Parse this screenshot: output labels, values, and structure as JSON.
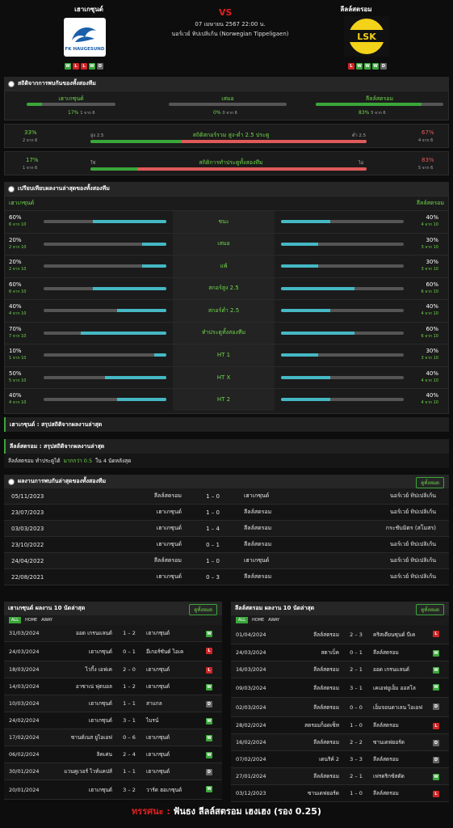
{
  "header": {
    "home": "เฮาเกซุนด์",
    "away": "ลีลล์สตรอม",
    "vs": "VS",
    "date": "07 เมษายน 2567 22:00 น.",
    "league": "นอร์เวย์ ทิปเปลิเก้น (Norwegian Tippeligaen)",
    "home_logo_text": "FK HAUGESUND",
    "away_logo_text": "LSK",
    "home_form": [
      "W",
      "L",
      "L",
      "W",
      "D"
    ],
    "away_form": [
      "L",
      "W",
      "W",
      "W",
      "D"
    ]
  },
  "h2h_stats": {
    "title": "สถิติจากการพบกันของทั้งสองทีม",
    "home_label": "เฮาเกซุนด์",
    "draw_label": "เสมอ",
    "away_label": "ลีลล์สตรอม",
    "home_pct": "17%",
    "home_of": "1 จาก 6",
    "draw_pct": "0%",
    "draw_of": "0 จาก 6",
    "away_pct": "83%",
    "away_of": "5 จาก 6",
    "ou_left_pct": "33%",
    "ou_left_of": "2 จาก 6",
    "ou_over": "สูง 2.5",
    "ou_title": "สถิติสกอร์รวม สูง-ต่ำ 2.5 ประตู",
    "ou_under": "ต่ำ 2.5",
    "ou_right_pct": "67%",
    "ou_right_of": "4 จาก 6",
    "bt_left_pct": "17%",
    "bt_left_of": "1 จาก 6",
    "bt_yes": "ใช่",
    "bt_title": "สถิติการทำประตูทั้งสองทีม",
    "bt_no": "ไม่",
    "bt_right_pct": "83%",
    "bt_right_of": "5 จาก 6"
  },
  "compare": {
    "title": "เปรียบเทียบผลงานล่าสุดของทั้งสองทีม",
    "home": "เฮาเกซุนด์",
    "away": "ลีลล์สตรอม",
    "rows": [
      {
        "label": "ชนะ",
        "lp": "60%",
        "lo": "6 จาก 10",
        "rp": "40%",
        "ro": "4 จาก 10",
        "l": 0.6,
        "r": 0.4
      },
      {
        "label": "เสมอ",
        "lp": "20%",
        "lo": "2 จาก 10",
        "rp": "30%",
        "ro": "3 จาก 10",
        "l": 0.2,
        "r": 0.3
      },
      {
        "label": "แพ้",
        "lp": "20%",
        "lo": "2 จาก 10",
        "rp": "30%",
        "ro": "3 จาก 10",
        "l": 0.2,
        "r": 0.3
      },
      {
        "label": "สกอร์สูง 2.5",
        "lp": "60%",
        "lo": "6 จาก 10",
        "rp": "60%",
        "ro": "6 จาก 10",
        "l": 0.6,
        "r": 0.6
      },
      {
        "label": "สกอร์ต่ำ 2.5",
        "lp": "40%",
        "lo": "4 จาก 10",
        "rp": "40%",
        "ro": "4 จาก 10",
        "l": 0.4,
        "r": 0.4
      },
      {
        "label": "ทำประตูทั้งสองทีม",
        "lp": "70%",
        "lo": "7 จาก 10",
        "rp": "60%",
        "ro": "6 จาก 10",
        "l": 0.7,
        "r": 0.6
      },
      {
        "label": "HT 1",
        "lp": "10%",
        "lo": "1 จาก 10",
        "rp": "30%",
        "ro": "3 จาก 10",
        "l": 0.1,
        "r": 0.3
      },
      {
        "label": "HT X",
        "lp": "50%",
        "lo": "5 จาก 10",
        "rp": "40%",
        "ro": "4 จาก 10",
        "l": 0.5,
        "r": 0.4
      },
      {
        "label": "HT 2",
        "lp": "40%",
        "lo": "4 จาก 10",
        "rp": "40%",
        "ro": "4 จาก 10",
        "l": 0.4,
        "r": 0.4
      }
    ]
  },
  "summary": {
    "home_title": "เฮาเกซุนด์ : สรุปสถิติจากผลงานล่าสุด",
    "away_title": "ลีลล์สตรอม : สรุปสถิติจากผลงานล่าสุด",
    "away_line_a": "ลีลล์สตรอม ทำประตูได้",
    "away_line_b": "มากกว่า 0.5",
    "away_line_c": "ใน 4 นัดหลังสุด"
  },
  "h2h": {
    "title": "ผลงานการพบกันล่าสุดของทั้งสองทีม",
    "button": "ดูทั้งหมด",
    "rows": [
      {
        "date": "05/11/2023",
        "home": "ลีลล์สตรอม",
        "score": "1 – 0",
        "away": "เฮาเกซุนด์",
        "league": "นอร์เวย์ ทิปเปลิเก้น"
      },
      {
        "date": "23/07/2023",
        "home": "เฮาเกซุนด์",
        "score": "1 – 0",
        "away": "ลีลล์สตรอม",
        "league": "นอร์เวย์ ทิปเปลิเก้น"
      },
      {
        "date": "03/03/2023",
        "home": "เฮาเกซุนด์",
        "score": "1 – 4",
        "away": "ลีลล์สตรอม",
        "league": "กระชับมิตร (สโมสร)"
      },
      {
        "date": "23/10/2022",
        "home": "เฮาเกซุนด์",
        "score": "0 – 1",
        "away": "ลีลล์สตรอม",
        "league": "นอร์เวย์ ทิปเปลิเก้น"
      },
      {
        "date": "24/04/2022",
        "home": "ลีลล์สตรอม",
        "score": "1 – 0",
        "away": "เฮาเกซุนด์",
        "league": "นอร์เวย์ ทิปเปลิเก้น"
      },
      {
        "date": "22/08/2021",
        "home": "เฮาเกซุนด์",
        "score": "0 – 3",
        "away": "ลีลล์สตรอม",
        "league": "นอร์เวย์ ทิปเปลิเก้น"
      }
    ]
  },
  "last10_home": {
    "title": "เฮาเกซุนด์ ผลงาน 10 นัดล่าสุด",
    "button": "ดูทั้งหมด",
    "tabs": [
      "ALL",
      "HOME",
      "AWAY"
    ],
    "rows": [
      {
        "date": "31/03/2024",
        "home": "ออด เกรนแลนด์",
        "score": "1 – 2",
        "away": "เฮาเกซุนด์",
        "r": "W"
      },
      {
        "date": "24/03/2024",
        "home": "เฮาเกซุนด์",
        "score": "0 – 1",
        "away": "อีเกอร์ซันด์ ไอเค",
        "r": "L"
      },
      {
        "date": "18/03/2024",
        "home": "ไวกิ้ง เอฟเค",
        "score": "2 – 0",
        "away": "เฮาเกซุนด์",
        "r": "L"
      },
      {
        "date": "14/03/2024",
        "home": "อาซาเน่ ฟุตบอล",
        "score": "1 – 2",
        "away": "เฮาเกซุนด์",
        "r": "W"
      },
      {
        "date": "10/03/2024",
        "home": "เฮาเกซุนด์",
        "score": "1 – 1",
        "away": "สาแกล",
        "r": "D"
      },
      {
        "date": "24/02/2024",
        "home": "เฮาเกซุนด์",
        "score": "3 – 1",
        "away": "ไบรน์",
        "r": "W"
      },
      {
        "date": "17/02/2024",
        "home": "ซานด์เนส ยูไอเอฟ",
        "score": "0 – 6",
        "away": "เฮาเกซุนด์",
        "r": "W"
      },
      {
        "date": "06/02/2024",
        "home": "ลิคเค่น",
        "score": "2 – 4",
        "away": "เฮาเกซุนด์",
        "r": "W"
      },
      {
        "date": "30/01/2024",
        "home": "แวนคูเวอร์ ไวท์แคปส์",
        "score": "1 – 1",
        "away": "เฮาเกซุนด์",
        "r": "D"
      },
      {
        "date": "20/01/2024",
        "home": "เฮาเกซุนด์",
        "score": "3 – 2",
        "away": "วาร์ด ฮอเกซุนด์",
        "r": "W"
      }
    ]
  },
  "last10_away": {
    "title": "ลีลล์สตรอม ผลงาน 10 นัดล่าสุด",
    "button": "ดูทั้งหมด",
    "tabs": [
      "ALL",
      "HOME",
      "AWAY"
    ],
    "rows": [
      {
        "date": "01/04/2024",
        "home": "ลีลล์สตรอม",
        "score": "2 – 3",
        "away": "คริสเตียนซุนด์ บีเค",
        "r": "L"
      },
      {
        "date": "24/03/2024",
        "home": "สตาเบ็ค",
        "score": "0 – 1",
        "away": "ลีลล์สตรอม",
        "r": "W"
      },
      {
        "date": "16/03/2024",
        "home": "ลีลล์สตรอม",
        "score": "2 – 1",
        "away": "ออด เกรนแลนด์",
        "r": "W"
      },
      {
        "date": "09/03/2024",
        "home": "ลีลล์สตรอม",
        "score": "3 – 1",
        "away": "เคเอฟยูเอ็ม ออสโล",
        "r": "W"
      },
      {
        "date": "02/03/2024",
        "home": "ลีลล์สตรอม",
        "score": "0 – 0",
        "away": "เอ็มจอนดาเลน ไอเอฟ",
        "r": "D"
      },
      {
        "date": "28/02/2024",
        "home": "สตรอมก็อดเซ็ท",
        "score": "1 – 0",
        "away": "ลีลล์สตรอม",
        "r": "L"
      },
      {
        "date": "16/02/2024",
        "home": "ลีลล์สตรอม",
        "score": "2 – 2",
        "away": "ซานเดฟยอร์ด",
        "r": "D"
      },
      {
        "date": "07/02/2024",
        "home": "เดนริค์ 2",
        "score": "3 – 3",
        "away": "ลีลล์สตรอม",
        "r": "D"
      },
      {
        "date": "27/01/2024",
        "home": "ลีลล์สตรอม",
        "score": "2 – 1",
        "away": "เฟรดริกซ์สตัด",
        "r": "W"
      },
      {
        "date": "03/12/2023",
        "home": "ซานเดฟยอร์ด",
        "score": "1 – 0",
        "away": "ลีลล์สตรอม",
        "r": "L"
      }
    ]
  },
  "footer": {
    "label": "ทรรศนะ :",
    "text": "ฟันธง ลีลล์สตรอม เฮงเฮง (รอง 0.25)"
  },
  "colors": {
    "green": "#3aa63a",
    "red": "#e05a5a",
    "teal": "#45b8c4"
  }
}
